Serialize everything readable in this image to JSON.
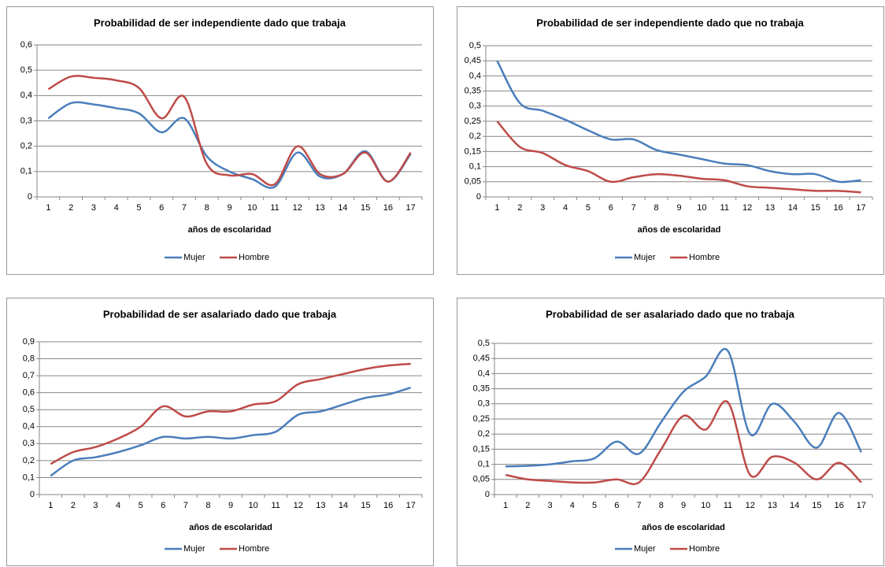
{
  "chart_data": [
    {
      "type": "line",
      "title": "Probabilidad de ser independiente dado que trabaja",
      "x_label": "años de escolaridad",
      "categories": [
        "1",
        "2",
        "3",
        "4",
        "5",
        "6",
        "7",
        "8",
        "9",
        "10",
        "11",
        "12",
        "13",
        "14",
        "15",
        "16",
        "17"
      ],
      "series": [
        {
          "name": "Mujer",
          "color": "#4a7ebb",
          "values": [
            0.31,
            0.37,
            0.365,
            0.35,
            0.33,
            0.255,
            0.31,
            0.16,
            0.1,
            0.07,
            0.04,
            0.175,
            0.08,
            0.09,
            0.18,
            0.06,
            0.17
          ]
        },
        {
          "name": "Hombre",
          "color": "#be4b48",
          "values": [
            0.425,
            0.475,
            0.47,
            0.46,
            0.43,
            0.31,
            0.395,
            0.13,
            0.085,
            0.09,
            0.05,
            0.2,
            0.09,
            0.09,
            0.175,
            0.06,
            0.175
          ]
        }
      ],
      "ylim": [
        0,
        0.6
      ],
      "yticks": [
        0,
        {
          "value": 0.1,
          "label": "0,1"
        },
        {
          "value": 0.2,
          "label": "0,2"
        },
        {
          "value": 0.3,
          "label": "0,3"
        },
        {
          "value": 0.4,
          "label": "0,4"
        },
        {
          "value": 0.5,
          "label": "0,5"
        },
        {
          "value": 0.6,
          "label": "0,6"
        }
      ],
      "grid": true,
      "legend": "bottom"
    },
    {
      "type": "line",
      "title": "Probabilidad de ser independiente dado que no trabaja",
      "x_label": "años de escolaridad",
      "categories": [
        "1",
        "2",
        "3",
        "4",
        "5",
        "6",
        "7",
        "8",
        "9",
        "10",
        "11",
        "12",
        "13",
        "14",
        "15",
        "16",
        "17"
      ],
      "series": [
        {
          "name": "Mujer",
          "color": "#4a7ebb",
          "values": [
            0.45,
            0.31,
            0.285,
            0.255,
            0.22,
            0.19,
            0.19,
            0.155,
            0.14,
            0.125,
            0.11,
            0.105,
            0.085,
            0.075,
            0.075,
            0.05,
            0.055
          ]
        },
        {
          "name": "Hombre",
          "color": "#be4b48",
          "values": [
            0.25,
            0.165,
            0.145,
            0.105,
            0.085,
            0.05,
            0.065,
            0.075,
            0.07,
            0.06,
            0.055,
            0.035,
            0.03,
            0.025,
            0.02,
            0.02,
            0.015
          ]
        }
      ],
      "ylim": [
        0,
        0.5
      ],
      "yticks": [
        0,
        {
          "value": 0.05,
          "label": "0,05"
        },
        {
          "value": 0.1,
          "label": "0,1"
        },
        {
          "value": 0.15,
          "label": "0,15"
        },
        {
          "value": 0.2,
          "label": "0,2"
        },
        {
          "value": 0.25,
          "label": "0,25"
        },
        {
          "value": 0.3,
          "label": "0,3"
        },
        {
          "value": 0.35,
          "label": "0,35"
        },
        {
          "value": 0.4,
          "label": "0,4"
        },
        {
          "value": 0.45,
          "label": "0,45"
        },
        {
          "value": 0.5,
          "label": "0,5"
        }
      ],
      "grid": true,
      "legend": "bottom"
    },
    {
      "type": "line",
      "title": "Probabilidad de ser asalariado dado que trabaja",
      "x_label": "años de escolaridad",
      "categories": [
        "1",
        "2",
        "3",
        "4",
        "5",
        "6",
        "7",
        "8",
        "9",
        "10",
        "11",
        "12",
        "13",
        "14",
        "15",
        "16",
        "17"
      ],
      "series": [
        {
          "name": "Mujer",
          "color": "#4a7ebb",
          "values": [
            0.11,
            0.2,
            0.22,
            0.25,
            0.29,
            0.34,
            0.33,
            0.34,
            0.33,
            0.35,
            0.37,
            0.47,
            0.49,
            0.53,
            0.57,
            0.59,
            0.63
          ]
        },
        {
          "name": "Hombre",
          "color": "#be4b48",
          "values": [
            0.18,
            0.25,
            0.28,
            0.33,
            0.4,
            0.52,
            0.46,
            0.49,
            0.49,
            0.53,
            0.55,
            0.65,
            0.68,
            0.71,
            0.74,
            0.76,
            0.77
          ]
        }
      ],
      "ylim": [
        0,
        0.9
      ],
      "yticks": [
        0,
        {
          "value": 0.1,
          "label": "0,1"
        },
        {
          "value": 0.2,
          "label": "0,2"
        },
        {
          "value": 0.3,
          "label": "0,3"
        },
        {
          "value": 0.4,
          "label": "0,4"
        },
        {
          "value": 0.5,
          "label": "0,5"
        },
        {
          "value": 0.6,
          "label": "0,6"
        },
        {
          "value": 0.7,
          "label": "0,7"
        },
        {
          "value": 0.8,
          "label": "0,8"
        },
        {
          "value": 0.9,
          "label": "0,9"
        }
      ],
      "grid": true,
      "legend": "bottom"
    },
    {
      "type": "line",
      "title": "Probabilidad de ser asalariado dado que no trabaja",
      "x_label": "años de escolaridad",
      "categories": [
        "1",
        "2",
        "3",
        "4",
        "5",
        "6",
        "7",
        "8",
        "9",
        "10",
        "11",
        "12",
        "13",
        "14",
        "15",
        "16",
        "17"
      ],
      "series": [
        {
          "name": "Mujer",
          "color": "#4a7ebb",
          "values": [
            0.093,
            0.095,
            0.1,
            0.11,
            0.12,
            0.175,
            0.135,
            0.24,
            0.34,
            0.39,
            0.475,
            0.2,
            0.3,
            0.24,
            0.155,
            0.27,
            0.14
          ]
        },
        {
          "name": "Hombre",
          "color": "#be4b48",
          "values": [
            0.065,
            0.05,
            0.045,
            0.04,
            0.04,
            0.05,
            0.04,
            0.15,
            0.26,
            0.215,
            0.305,
            0.065,
            0.125,
            0.105,
            0.05,
            0.105,
            0.04
          ]
        }
      ],
      "ylim": [
        0,
        0.5
      ],
      "yticks": [
        0,
        {
          "value": 0.05,
          "label": "0,05"
        },
        {
          "value": 0.1,
          "label": "0,1"
        },
        {
          "value": 0.15,
          "label": "0,15"
        },
        {
          "value": 0.2,
          "label": "0,2"
        },
        {
          "value": 0.25,
          "label": "0,25"
        },
        {
          "value": 0.3,
          "label": "0,3"
        },
        {
          "value": 0.35,
          "label": "0,35"
        },
        {
          "value": 0.4,
          "label": "0,4"
        },
        {
          "value": 0.45,
          "label": "0,45"
        },
        {
          "value": 0.5,
          "label": "0,5"
        }
      ],
      "grid": true,
      "legend": "bottom"
    }
  ]
}
